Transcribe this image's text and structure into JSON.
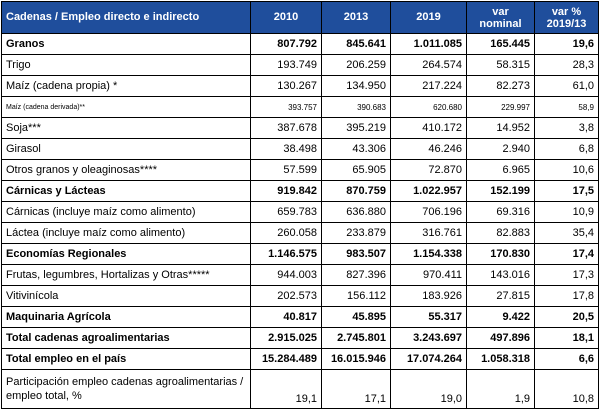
{
  "header": {
    "label": "Cadenas / Empleo directo e indirecto",
    "c2010": "2010",
    "c2013": "2013",
    "c2019": "2019",
    "var_nominal": "var nominal",
    "var_pct": "var % 2019/13"
  },
  "rows": [
    {
      "label": "Granos",
      "v2010": "807.792",
      "v2013": "845.641",
      "v2019": "1.011.085",
      "var_nom": "165.445",
      "var_pct": "19,6"
    },
    {
      "label": "Trigo",
      "v2010": "193.749",
      "v2013": "206.259",
      "v2019": "264.574",
      "var_nom": "58.315",
      "var_pct": "28,3"
    },
    {
      "label": "Maíz (cadena propia) *",
      "v2010": "130.267",
      "v2013": "134.950",
      "v2019": "217.224",
      "var_nom": "82.273",
      "var_pct": "61,0"
    },
    {
      "label": "Maíz (cadena derivada)**",
      "v2010": "393.757",
      "v2013": "390.683",
      "v2019": "620.680",
      "var_nom": "229.997",
      "var_pct": "58,9"
    },
    {
      "label": "Soja***",
      "v2010": "387.678",
      "v2013": "395.219",
      "v2019": "410.172",
      "var_nom": "14.952",
      "var_pct": "3,8"
    },
    {
      "label": "Girasol",
      "v2010": "38.498",
      "v2013": "43.306",
      "v2019": "46.246",
      "var_nom": "2.940",
      "var_pct": "6,8"
    },
    {
      "label": "Otros granos y oleaginosas****",
      "v2010": "57.599",
      "v2013": "65.905",
      "v2019": "72.870",
      "var_nom": "6.965",
      "var_pct": "10,6"
    },
    {
      "label": "Cárnicas y Lácteas",
      "v2010": "919.842",
      "v2013": "870.759",
      "v2019": "1.022.957",
      "var_nom": "152.199",
      "var_pct": "17,5"
    },
    {
      "label": "Cárnicas (incluye maíz como alimento)",
      "v2010": "659.783",
      "v2013": "636.880",
      "v2019": "706.196",
      "var_nom": "69.316",
      "var_pct": "10,9"
    },
    {
      "label": "Láctea (incluye maíz como alimento)",
      "v2010": "260.058",
      "v2013": "233.879",
      "v2019": "316.761",
      "var_nom": "82.883",
      "var_pct": "35,4"
    },
    {
      "label": "Economías Regionales",
      "v2010": "1.146.575",
      "v2013": "983.507",
      "v2019": "1.154.338",
      "var_nom": "170.830",
      "var_pct": "17,4"
    },
    {
      "label": "Frutas, legumbres, Hortalizas y Otras*****",
      "v2010": "944.003",
      "v2013": "827.396",
      "v2019": "970.411",
      "var_nom": "143.016",
      "var_pct": "17,3"
    },
    {
      "label": "Vitivinícola",
      "v2010": "202.573",
      "v2013": "156.112",
      "v2019": "183.926",
      "var_nom": "27.815",
      "var_pct": "17,8"
    },
    {
      "label": "Maquinaria Agrícola",
      "v2010": "40.817",
      "v2013": "45.895",
      "v2019": "55.317",
      "var_nom": "9.422",
      "var_pct": "20,5"
    },
    {
      "label": "Total cadenas agroalimentarias",
      "v2010": "2.915.025",
      "v2013": "2.745.801",
      "v2019": "3.243.697",
      "var_nom": "497.896",
      "var_pct": "18,1"
    },
    {
      "label": "Total empleo en el país",
      "v2010": "15.284.489",
      "v2013": "16.015.946",
      "v2019": "17.074.264",
      "var_nom": "1.058.318",
      "var_pct": "6,6"
    },
    {
      "label": "Participación empleo cadenas agroalimentarias / empleo total, %",
      "v2010": "19,1",
      "v2013": "17,1",
      "v2019": "19,0",
      "var_nom": "1,9",
      "var_pct": "10,8"
    }
  ]
}
